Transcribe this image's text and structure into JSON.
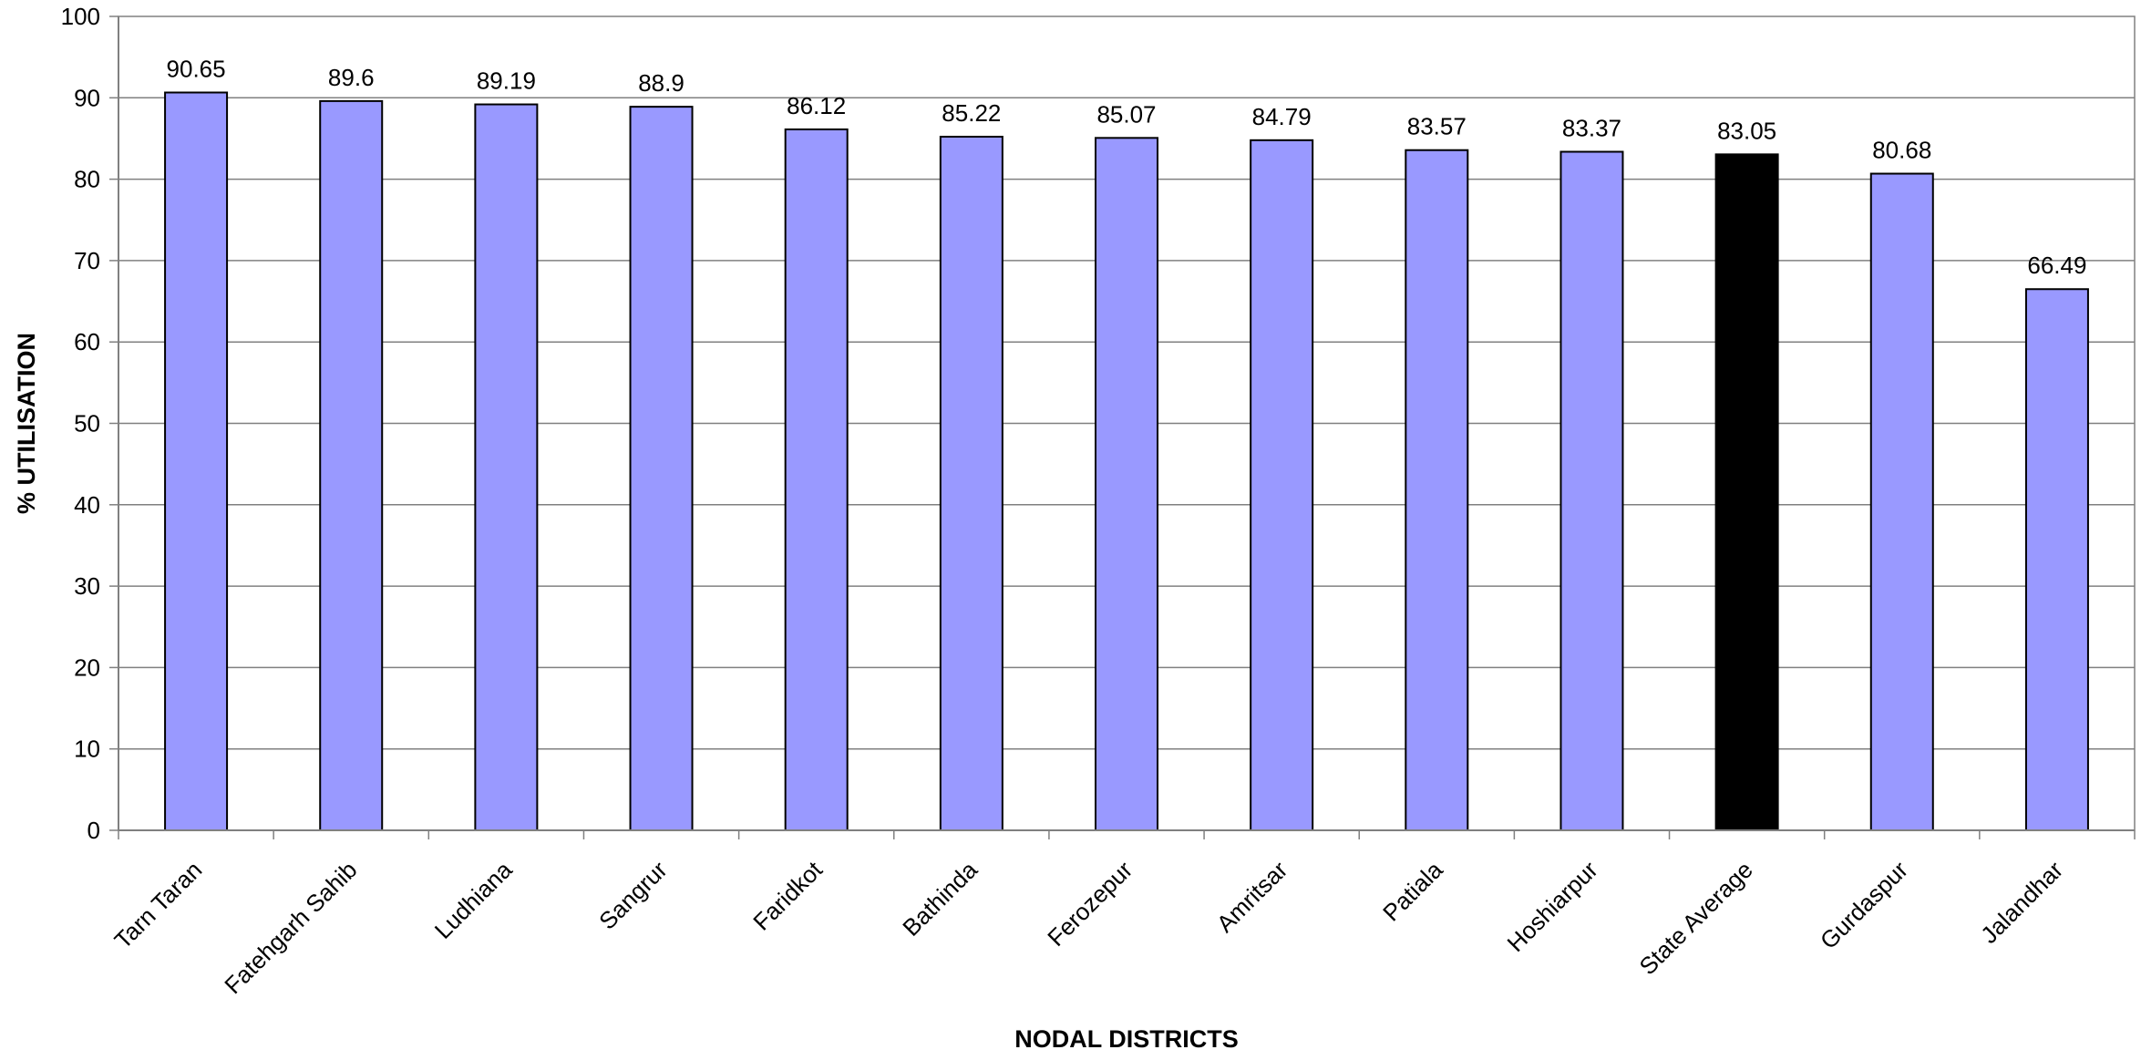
{
  "chart_data": {
    "type": "bar",
    "title": "",
    "xlabel": "NODAL DISTRICTS",
    "ylabel": "% UTILISATION",
    "ylim": [
      0,
      100
    ],
    "yticks": [
      0,
      10,
      20,
      30,
      40,
      50,
      60,
      70,
      80,
      90,
      100
    ],
    "grid": true,
    "legend": "none",
    "categories": [
      "Tarn Taran",
      "Fatehgarh Sahib",
      "Ludhiana",
      "Sangrur",
      "Faridkot",
      "Bathinda",
      "Ferozepur",
      "Amritsar",
      "Patiala",
      "Hoshiarpur",
      "State Average",
      "Gurdaspur",
      "Jalandhar"
    ],
    "values": [
      90.65,
      89.6,
      89.19,
      88.9,
      86.12,
      85.22,
      85.07,
      84.79,
      83.57,
      83.37,
      83.05,
      80.68,
      66.49
    ],
    "data_labels": [
      "90.65",
      "89.6",
      "89.19",
      "88.9",
      "86.12",
      "85.22",
      "85.07",
      "84.79",
      "83.57",
      "83.37",
      "83.05",
      "80.68",
      "66.49"
    ],
    "highlight_category": "State Average",
    "colors": {
      "bar": "#9999ff",
      "highlight_bar": "#000000",
      "grid": "#808080",
      "axis": "#808080",
      "bar_outline": "#000000"
    }
  }
}
